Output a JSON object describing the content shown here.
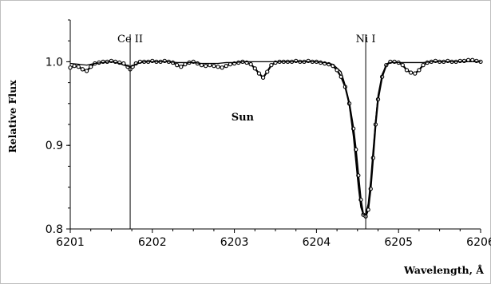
{
  "chart_data": {
    "type": "line",
    "xlabel": "Wavelength, Å",
    "ylabel": "Relative Flux",
    "xlim": [
      6201,
      6206
    ],
    "ylim": [
      0.8,
      1.05
    ],
    "x_ticks": [
      "6201",
      "6202",
      "6203",
      "6204",
      "6205",
      "6206"
    ],
    "y_ticks": [
      "0.8",
      "0.9",
      "1.0"
    ],
    "grid": false,
    "legend": "none",
    "annotations": [
      {
        "text": "Ce II",
        "x": 6201.73
      },
      {
        "text": "Ni I",
        "x": 6204.6
      },
      {
        "text": "Sun",
        "x": 6203.1,
        "y": 0.93
      }
    ],
    "series": [
      {
        "style": "markers",
        "color": "#000000",
        "x": [
          6201.0,
          6201.05,
          6201.1,
          6201.15,
          6201.2,
          6201.25,
          6201.3,
          6201.35,
          6201.4,
          6201.45,
          6201.5,
          6201.55,
          6201.6,
          6201.65,
          6201.7,
          6201.73,
          6201.76,
          6201.8,
          6201.85,
          6201.9,
          6201.95,
          6202.0,
          6202.05,
          6202.1,
          6202.15,
          6202.2,
          6202.25,
          6202.3,
          6202.35,
          6202.4,
          6202.45,
          6202.5,
          6202.55,
          6202.6,
          6202.65,
          6202.7,
          6202.75,
          6202.8,
          6202.85,
          6202.9,
          6202.95,
          6203.0,
          6203.05,
          6203.1,
          6203.15,
          6203.2,
          6203.25,
          6203.3,
          6203.35,
          6203.4,
          6203.45,
          6203.5,
          6203.55,
          6203.6,
          6203.65,
          6203.7,
          6203.75,
          6203.8,
          6203.85,
          6203.9,
          6203.95,
          6204.0,
          6204.05,
          6204.1,
          6204.15,
          6204.2,
          6204.25,
          6204.3,
          6204.35,
          6204.4,
          6204.45,
          6204.48,
          6204.51,
          6204.54,
          6204.57,
          6204.6,
          6204.63,
          6204.66,
          6204.69,
          6204.72,
          6204.75,
          6204.8,
          6204.85,
          6204.9,
          6204.95,
          6205.0,
          6205.05,
          6205.1,
          6205.15,
          6205.2,
          6205.25,
          6205.3,
          6205.35,
          6205.4,
          6205.45,
          6205.5,
          6205.55,
          6205.6,
          6205.65,
          6205.7,
          6205.75,
          6205.8,
          6205.85,
          6205.9,
          6205.95,
          6206.0
        ],
        "y": [
          0.993,
          0.995,
          0.994,
          0.991,
          0.989,
          0.994,
          0.998,
          0.999,
          1.0,
          1.0,
          1.001,
          1.0,
          0.999,
          0.998,
          0.994,
          0.991,
          0.994,
          0.998,
          1.0,
          1.0,
          1.0,
          1.001,
          1.0,
          1.0,
          1.001,
          1.0,
          0.999,
          0.996,
          0.994,
          0.997,
          0.999,
          1.0,
          0.998,
          0.996,
          0.995,
          0.996,
          0.995,
          0.994,
          0.993,
          0.995,
          0.997,
          0.998,
          0.999,
          1.0,
          0.999,
          0.997,
          0.992,
          0.986,
          0.981,
          0.988,
          0.996,
          0.999,
          1.0,
          1.0,
          1.0,
          1.0,
          1.001,
          1.0,
          1.0,
          1.001,
          1.0,
          1.0,
          0.999,
          0.998,
          0.997,
          0.995,
          0.99,
          0.982,
          0.97,
          0.95,
          0.92,
          0.895,
          0.864,
          0.835,
          0.817,
          0.815,
          0.823,
          0.848,
          0.885,
          0.925,
          0.955,
          0.982,
          0.996,
          1.0,
          1.0,
          0.999,
          0.996,
          0.99,
          0.987,
          0.986,
          0.99,
          0.996,
          0.999,
          1.0,
          1.001,
          1.0,
          1.0,
          1.001,
          1.0,
          1.0,
          1.001,
          1.001,
          1.002,
          1.002,
          1.001,
          1.0
        ]
      },
      {
        "style": "line",
        "color": "#000000",
        "x": [
          6201.0,
          6201.1,
          6201.2,
          6201.3,
          6201.4,
          6201.5,
          6201.6,
          6201.65,
          6201.73,
          6201.8,
          6201.9,
          6202.0,
          6202.1,
          6202.2,
          6202.3,
          6202.4,
          6202.5,
          6202.6,
          6202.7,
          6202.8,
          6202.9,
          6203.0,
          6203.1,
          6203.2,
          6203.3,
          6203.4,
          6203.5,
          6203.6,
          6203.7,
          6203.8,
          6203.9,
          6204.0,
          6204.1,
          6204.2,
          6204.3,
          6204.35,
          6204.4,
          6204.45,
          6204.48,
          6204.51,
          6204.54,
          6204.57,
          6204.6,
          6204.63,
          6204.66,
          6204.69,
          6204.72,
          6204.75,
          6204.8,
          6204.85,
          6204.9,
          6205.0,
          6205.1,
          6205.2,
          6205.3,
          6205.4,
          6205.5,
          6205.6,
          6205.7,
          6205.8,
          6205.9,
          6206.0
        ],
        "y": [
          0.998,
          0.997,
          0.996,
          0.998,
          0.999,
          1.0,
          0.998,
          0.996,
          0.994,
          0.997,
          1.0,
          1.0,
          1.0,
          1.0,
          0.999,
          0.999,
          0.999,
          0.998,
          0.998,
          0.998,
          0.999,
          0.999,
          1.0,
          1.0,
          1.0,
          1.0,
          1.0,
          1.0,
          1.0,
          1.0,
          1.0,
          1.0,
          0.999,
          0.997,
          0.988,
          0.972,
          0.947,
          0.91,
          0.88,
          0.85,
          0.826,
          0.817,
          0.818,
          0.83,
          0.858,
          0.895,
          0.93,
          0.96,
          0.985,
          0.996,
          0.999,
          0.999,
          0.999,
          0.999,
          0.999,
          1.0,
          1.0,
          1.0,
          1.0,
          1.0,
          1.0,
          1.0
        ]
      }
    ]
  }
}
